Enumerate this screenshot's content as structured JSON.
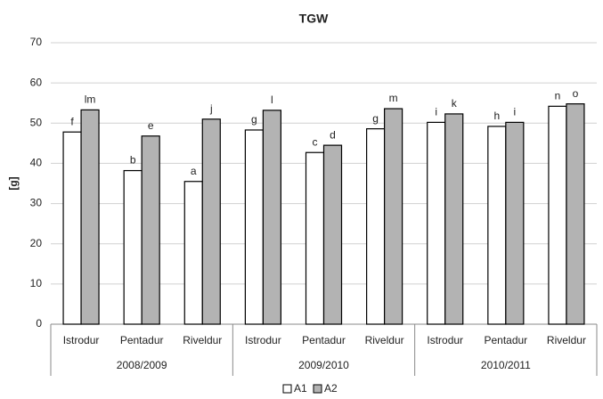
{
  "chart_data": {
    "type": "bar",
    "title": "TGW",
    "y_label": "[g]",
    "categories": [
      "Istrodur",
      "Pentadur",
      "Riveldur",
      "Istrodur",
      "Pentadur",
      "Riveldur",
      "Istrodur",
      "Pentadur",
      "Riveldur"
    ],
    "category_groups": [
      "2008/2009",
      "2009/2010",
      "2010/2011"
    ],
    "series": [
      {
        "name": "A1",
        "color": "#ffffff",
        "values": [
          47.8,
          38.2,
          35.5,
          48.3,
          42.7,
          48.6,
          50.2,
          49.2,
          54.2
        ],
        "annotations": [
          "f",
          "b",
          "a",
          "g",
          "c",
          "g",
          "i",
          "h",
          "n"
        ]
      },
      {
        "name": "A2",
        "color": "#b3b3b3",
        "values": [
          53.3,
          46.8,
          51.0,
          53.2,
          44.5,
          53.6,
          52.3,
          50.2,
          54.8
        ],
        "annotations": [
          "lm",
          "e",
          "j",
          "l",
          "d",
          "m",
          "k",
          "i",
          "o"
        ]
      }
    ],
    "ylim": [
      0,
      70
    ],
    "yticks": [
      0,
      10,
      20,
      30,
      40,
      50,
      60,
      70
    ],
    "grid": true,
    "legend": "bottom"
  }
}
